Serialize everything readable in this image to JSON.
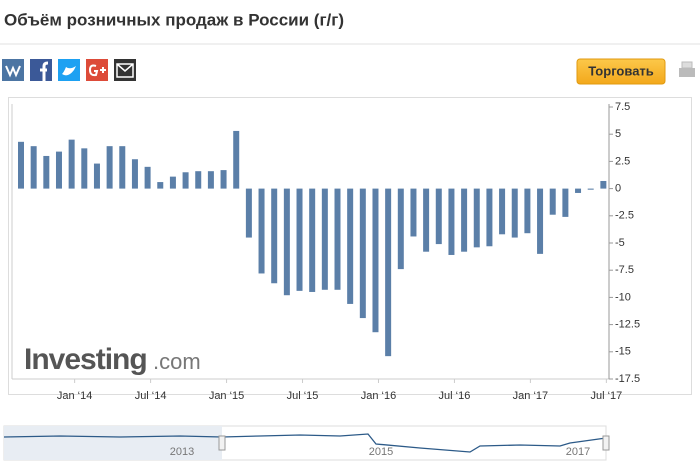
{
  "header": {
    "title": "Объём розничных продаж в России (г/г)",
    "button": "Торговать"
  },
  "chart_data": {
    "type": "bar",
    "categories": [
      null,
      null,
      null,
      null,
      "Jan ‘14",
      null,
      null,
      null,
      null,
      null,
      "Jul ‘14",
      null,
      null,
      null,
      null,
      null,
      "Jan ‘15",
      null,
      null,
      null,
      null,
      null,
      "Jul ‘15",
      null,
      null,
      null,
      null,
      null,
      "Jan ‘16",
      null,
      null,
      null,
      null,
      null,
      "Jul ‘16",
      null,
      null,
      null,
      null,
      null,
      "Jan ‘17",
      null,
      null,
      null,
      null,
      null,
      "Jul ‘17"
    ],
    "values": [
      4.3,
      3.9,
      3.0,
      3.4,
      4.5,
      3.7,
      2.3,
      3.9,
      3.9,
      2.7,
      2.0,
      0.6,
      1.1,
      1.5,
      1.6,
      1.6,
      1.7,
      5.3,
      -4.5,
      -7.8,
      -8.7,
      -9.8,
      -9.4,
      -9.5,
      -9.3,
      -9.3,
      -10.6,
      -11.9,
      -13.2,
      -15.4,
      -7.4,
      -4.4,
      -5.8,
      -5.1,
      -6.1,
      -5.8,
      -5.4,
      -5.3,
      -4.2,
      -4.5,
      -4.1,
      -6.0,
      -2.4,
      -2.6,
      -0.4,
      -0.1,
      0.7
    ],
    "color": "#5b7fa8",
    "ylim": [
      -17.5,
      7.5
    ],
    "yticks": [
      7.5,
      5,
      2.5,
      0,
      -2.5,
      -5,
      -7.5,
      -10,
      -12.5,
      -15,
      -17.5
    ]
  },
  "watermark": {
    "brand": "Investing",
    "domain": ".com"
  },
  "navigator": {
    "labels": [
      "2013",
      "2015",
      "2017"
    ]
  }
}
